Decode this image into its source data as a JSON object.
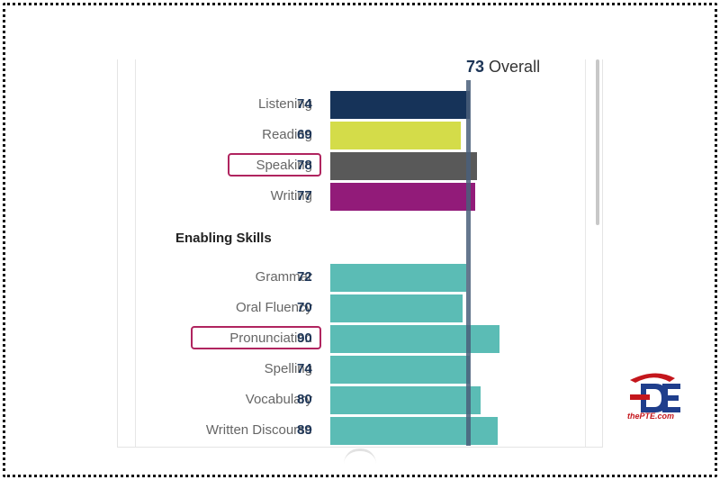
{
  "overall": {
    "score": "73",
    "label": "Overall"
  },
  "communicative_skills": [
    {
      "label": "Listening",
      "score": "74",
      "color": "#163359",
      "highlighted": false
    },
    {
      "label": "Reading",
      "score": "69",
      "color": "#d4dc49",
      "highlighted": false
    },
    {
      "label": "Speaking",
      "score": "78",
      "color": "#595959",
      "highlighted": true
    },
    {
      "label": "Writing",
      "score": "77",
      "color": "#921b79",
      "highlighted": false
    }
  ],
  "enabling_title": "Enabling Skills",
  "enabling_skills": [
    {
      "label": "Grammar",
      "score": "72",
      "color": "#5bbcb5",
      "highlighted": false
    },
    {
      "label": "Oral Fluency",
      "score": "70",
      "color": "#5bbcb5",
      "highlighted": false
    },
    {
      "label": "Pronunciation",
      "score": "90",
      "color": "#5bbcb5",
      "highlighted": true
    },
    {
      "label": "Spelling",
      "score": "74",
      "color": "#5bbcb5",
      "highlighted": false
    },
    {
      "label": "Vocabulary",
      "score": "80",
      "color": "#5bbcb5",
      "highlighted": false
    },
    {
      "label": "Written Discourse",
      "score": "89",
      "color": "#5bbcb5",
      "highlighted": false
    }
  ],
  "highlight_color": "#b0245f",
  "logo_text": "thePTE.com"
}
